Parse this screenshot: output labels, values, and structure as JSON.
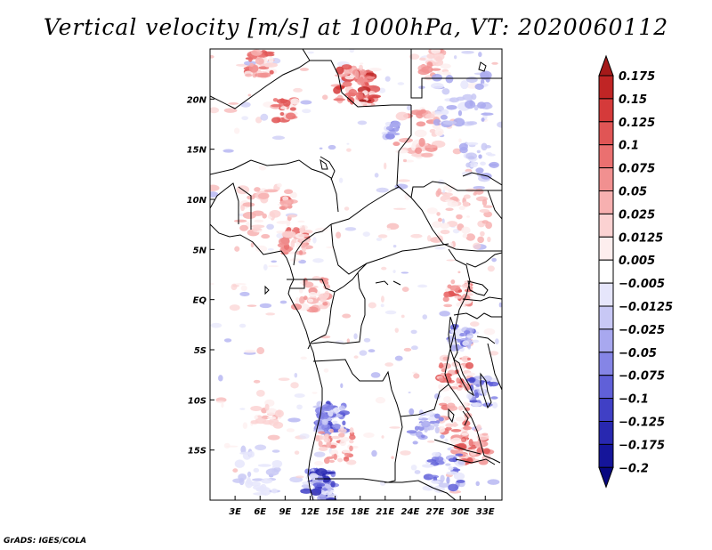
{
  "title": "Vertical velocity [m/s] at 1000hPa, VT: 2020060112",
  "credit": "GrADS: IGES/COLA",
  "map": {
    "lat_labels": [
      "20N",
      "15N",
      "10N",
      "5N",
      "EQ",
      "5S",
      "10S",
      "15S"
    ],
    "lat_values": [
      20,
      15,
      10,
      5,
      0,
      -5,
      -10,
      -15
    ],
    "lon_labels": [
      "3E",
      "6E",
      "9E",
      "12E",
      "15E",
      "18E",
      "21E",
      "24E",
      "27E",
      "30E",
      "33E"
    ],
    "lon_values": [
      3,
      6,
      9,
      12,
      15,
      18,
      21,
      24,
      27,
      30,
      33
    ],
    "lon_range": [
      0,
      35
    ],
    "lat_range": [
      -20,
      25
    ]
  },
  "colorbar": {
    "levels": [
      "0.175",
      "0.15",
      "0.125",
      "0.1",
      "0.075",
      "0.05",
      "0.025",
      "0.0125",
      "0.005",
      "-0.005",
      "-0.0125",
      "-0.025",
      "-0.05",
      "-0.075",
      "-0.1",
      "-0.125",
      "-0.175",
      "-0.2"
    ],
    "colors": [
      "#a51a1a",
      "#c02525",
      "#d53a3a",
      "#e05555",
      "#ea7070",
      "#f19090",
      "#f7b0b0",
      "#fbd2d2",
      "#fdeeee",
      "#ffffff",
      "#e6e6fb",
      "#c8c8f5",
      "#a8a8ef",
      "#8585e6",
      "#6060d8",
      "#4040c5",
      "#2828b0",
      "#15159a",
      "#080880"
    ]
  }
}
